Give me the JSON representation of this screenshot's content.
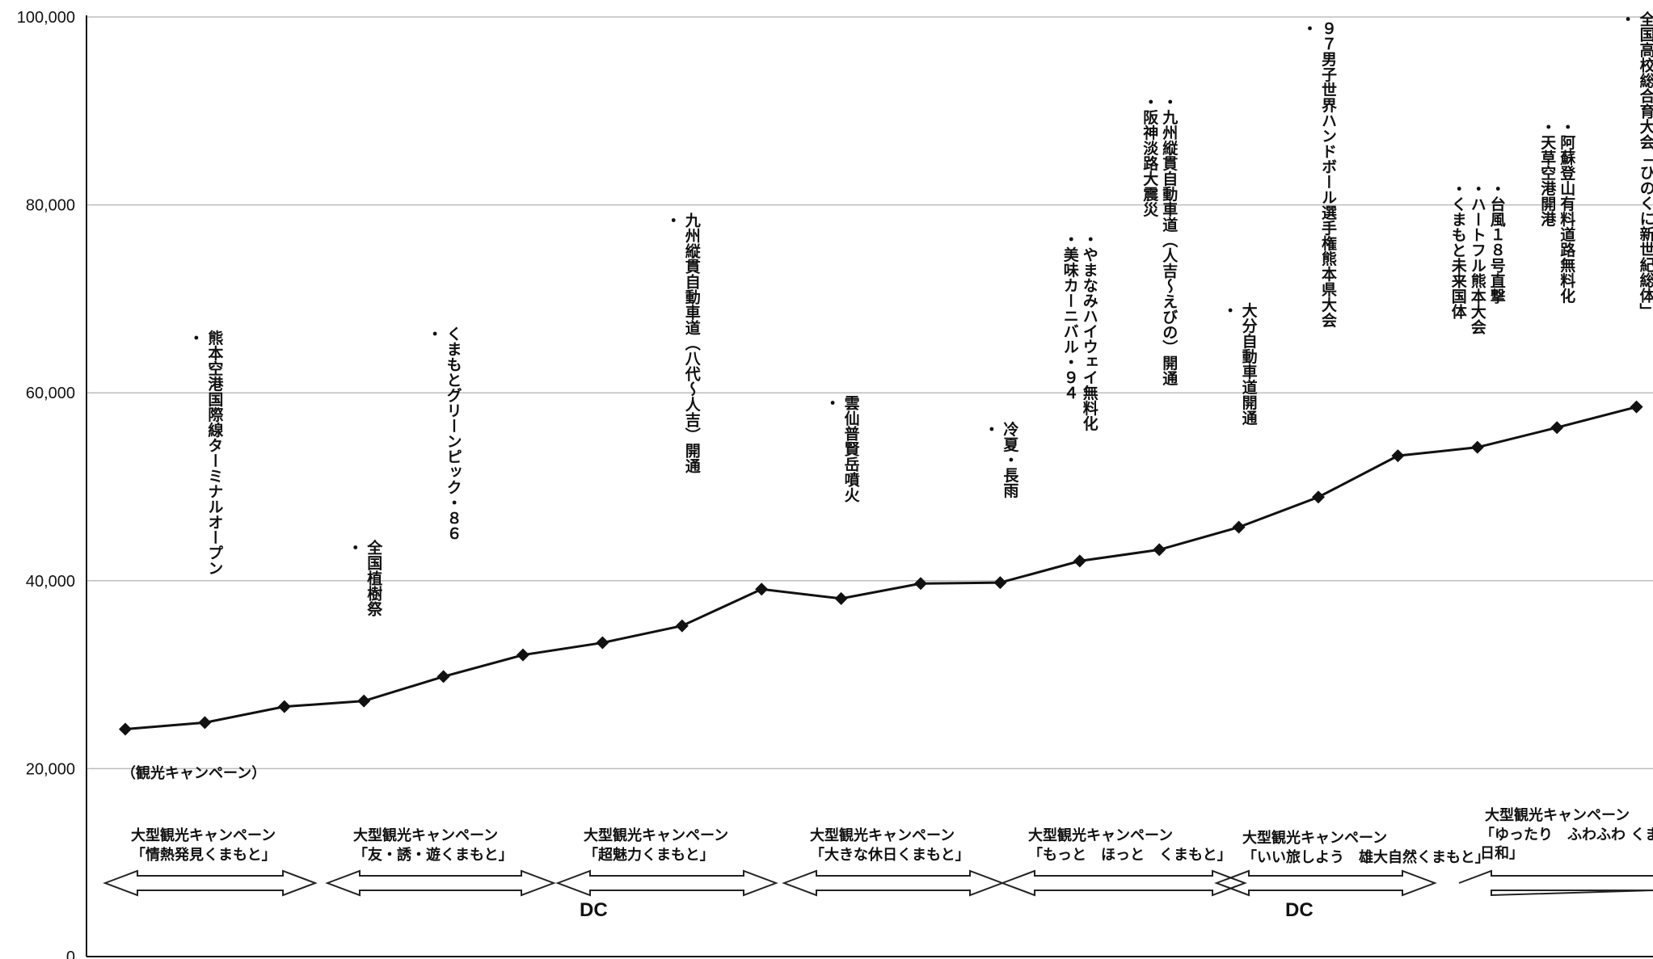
{
  "chart_data": {
    "type": "line",
    "title": "",
    "xlabel": "",
    "ylabel": "",
    "ylim": [
      0,
      100000
    ],
    "yticks": [
      "0",
      "20,000",
      "40,000",
      "60,000",
      "80,000",
      "100,000"
    ],
    "grid": "horizontal",
    "series": [
      {
        "values": [
          24200,
          24900,
          26600,
          27200,
          29800,
          32100,
          33400,
          35200,
          39100,
          38100,
          39700,
          39800,
          42100,
          43300,
          45700,
          48900,
          53300,
          54200,
          56300,
          58500
        ]
      }
    ],
    "annotations": [
      {
        "point": 1,
        "lines": [
          "・",
          "熊本空港国際線ターミナルオープン"
        ]
      },
      {
        "point": 3,
        "lines": [
          "・",
          "全国植樹祭"
        ]
      },
      {
        "point": 4,
        "lines": [
          "・",
          "くまもとグリーンピック・８６"
        ]
      },
      {
        "point": 7,
        "lines": [
          "・",
          "九州縦貫自動車道（八代～人吉）開通"
        ]
      },
      {
        "point": 9,
        "lines": [
          "・",
          "雲仙普賢岳噴火"
        ]
      },
      {
        "point": 11,
        "lines": [
          "・",
          "冷夏・長雨"
        ]
      },
      {
        "point": 12,
        "lines": [
          "・美味カーニバル・９４",
          "・やまなみハイウェイ無料化"
        ]
      },
      {
        "point": 13,
        "lines": [
          "・阪神淡路大震災",
          "・九州縦貫自動車道（人吉～えびの）開通"
        ]
      },
      {
        "point": 14,
        "lines": [
          "・",
          "大分自動車道開通"
        ]
      },
      {
        "point": 15,
        "lines": [
          "・",
          "９７男子世界ハンドボール選手権熊本県大会"
        ]
      },
      {
        "point": 17,
        "lines": [
          "・くまもと未来国体",
          "・ハートフル熊本大会",
          "・台風１８号直撃"
        ]
      },
      {
        "point": 18,
        "lines": [
          "・天草空港開港",
          "・阿蘇登山有料道路無料化"
        ]
      },
      {
        "point": 19,
        "lines": [
          "・",
          "全国高校総合育大会「ひのくに新世紀総体」"
        ]
      }
    ],
    "campaign_header": "（観光キャンペーン）",
    "campaigns": [
      {
        "title": "大型観光キャンペーン",
        "name": "「情熱発見くまもと」"
      },
      {
        "title": "大型観光キャンペーン",
        "name": "「友・誘・遊くまもと」"
      },
      {
        "title": "大型観光キャンペーン",
        "name": "「超魅力くまもと」"
      },
      {
        "title": "大型観光キャンペーン",
        "name": "「大きな休日くまもと」"
      },
      {
        "title": "大型観光キャンペーン",
        "name": "「もっと　ほっと　くまもと」"
      },
      {
        "title": "大型観光キャンペーン",
        "name": "「いい旅しよう　雄大自然くまもと」"
      },
      {
        "title": "大型観光キャンペーン",
        "name": "「ゆったり　ふわふわ くまもと日和」"
      }
    ],
    "dc_labels": [
      "DC",
      "DC"
    ]
  }
}
